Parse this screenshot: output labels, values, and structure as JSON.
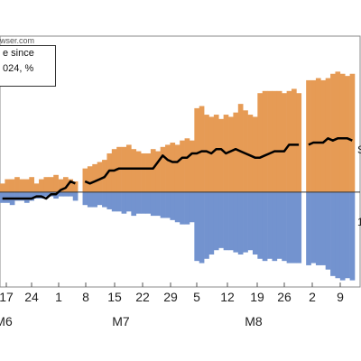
{
  "source_text": "wser.com",
  "legend_lines": [
    "e since",
    "024, %"
  ],
  "colors": {
    "positive": "#E69B55",
    "negative": "#7393CF",
    "line": "#000000",
    "axis": "#333333"
  },
  "right_labels": [
    "S",
    "1"
  ],
  "chart_data": {
    "type": "bar",
    "ylim": [
      -2.1,
      3.5
    ],
    "x_tick_labels": [
      "17",
      "24",
      "1",
      "8",
      "15",
      "22",
      "29",
      "5",
      "12",
      "19",
      "26",
      "2",
      "9"
    ],
    "month_labels": [
      "M6",
      "M7",
      "M8"
    ],
    "series": [
      {
        "name": "positive",
        "values": [
          0.2,
          0.3,
          0.3,
          0.35,
          0.3,
          0.3,
          0.35,
          0.2,
          0.3,
          0.35,
          0.35,
          0.4,
          0.3,
          0.35,
          0.3,
          0.25,
          null,
          0.55,
          0.6,
          0.65,
          0.7,
          0.75,
          0.9,
          1.0,
          1.05,
          1.05,
          1.1,
          1.0,
          0.95,
          0.9,
          0.9,
          1.0,
          0.95,
          1.05,
          1.1,
          1.15,
          1.1,
          1.2,
          1.25,
          1.2,
          1.95,
          2.0,
          1.8,
          1.75,
          1.8,
          1.7,
          1.8,
          1.75,
          1.85,
          2.05,
          1.9,
          1.8,
          1.75,
          2.3,
          2.35,
          2.35,
          2.35,
          2.35,
          2.3,
          2.35,
          2.4,
          2.3,
          null,
          2.6,
          2.6,
          2.65,
          2.6,
          2.65,
          2.75,
          2.8,
          2.75,
          2.7,
          2.75
        ]
      },
      {
        "name": "negative",
        "values": [
          -0.25,
          -0.25,
          -0.3,
          -0.2,
          -0.2,
          -0.25,
          -0.2,
          -0.15,
          -0.15,
          -0.1,
          -0.1,
          -0.15,
          -0.1,
          -0.1,
          -0.1,
          -0.2,
          null,
          -0.3,
          -0.35,
          -0.35,
          -0.3,
          -0.35,
          -0.4,
          -0.45,
          -0.45,
          -0.5,
          -0.45,
          -0.55,
          -0.5,
          -0.5,
          -0.5,
          -0.55,
          -0.55,
          -0.6,
          -0.6,
          -0.65,
          -0.7,
          -0.75,
          -0.75,
          -0.7,
          -1.6,
          -1.65,
          -1.55,
          -1.45,
          -1.35,
          -1.3,
          -1.35,
          -1.35,
          -1.4,
          -1.45,
          -1.4,
          -1.35,
          -1.45,
          -1.55,
          -1.6,
          -1.55,
          -1.6,
          -1.55,
          -1.6,
          -1.65,
          -1.65,
          -1.65,
          null,
          -1.7,
          -1.65,
          -1.7,
          -1.7,
          -1.8,
          -1.95,
          -2.0,
          -2.05,
          -2.0,
          -2.05
        ]
      },
      {
        "name": "balance",
        "values": [
          -0.15,
          -0.15,
          -0.15,
          -0.15,
          -0.15,
          -0.15,
          -0.15,
          -0.1,
          -0.1,
          -0.15,
          -0.05,
          -0.05,
          0.05,
          0.1,
          0.25,
          0.2,
          null,
          0.25,
          0.2,
          0.25,
          0.3,
          0.35,
          0.5,
          0.5,
          0.55,
          0.55,
          0.55,
          0.55,
          0.55,
          0.55,
          0.55,
          0.55,
          0.7,
          0.85,
          0.75,
          0.7,
          0.7,
          0.8,
          0.8,
          0.9,
          0.9,
          0.95,
          0.95,
          0.9,
          1.0,
          1.0,
          0.9,
          0.95,
          1.0,
          0.95,
          0.9,
          0.85,
          0.8,
          0.8,
          0.85,
          0.9,
          0.95,
          0.95,
          0.95,
          1.1,
          1.1,
          1.1,
          null,
          1.1,
          1.15,
          1.15,
          1.15,
          1.25,
          1.2,
          1.25,
          1.25,
          1.25,
          1.2
        ]
      }
    ]
  }
}
